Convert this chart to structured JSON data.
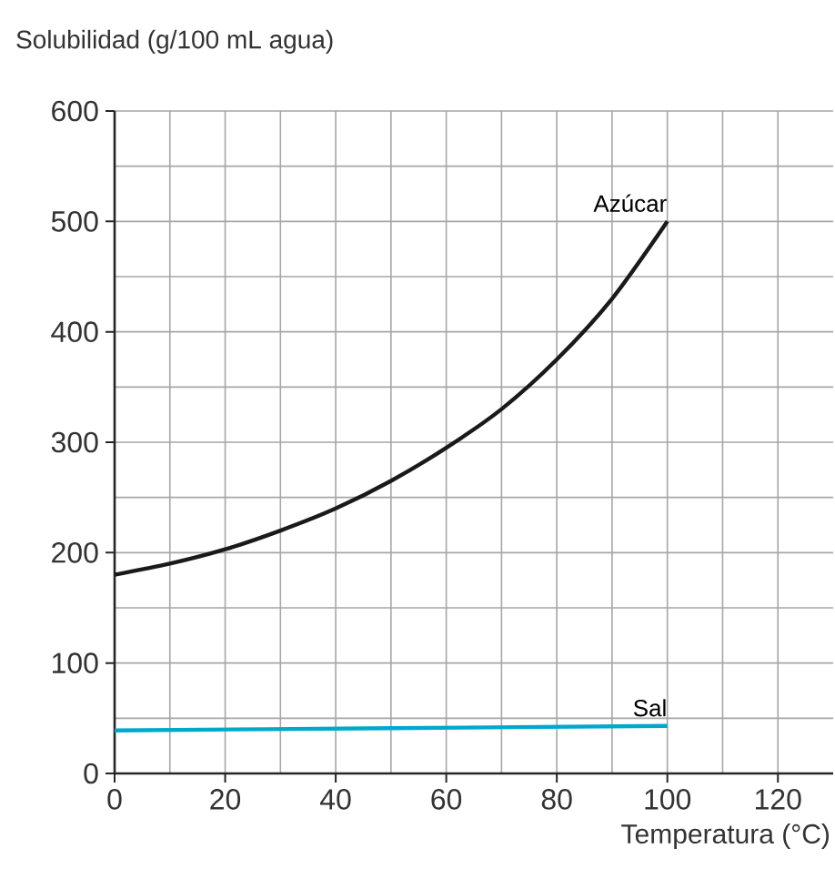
{
  "chart_data": {
    "type": "line",
    "xlabel": "Temperatura (°C)",
    "ylabel": "Solubilidad (g/100 mL agua)",
    "xlim": [
      0,
      130
    ],
    "ylim": [
      0,
      600
    ],
    "xticks": [
      0,
      20,
      40,
      60,
      80,
      100,
      120
    ],
    "yticks": [
      0,
      100,
      200,
      300,
      400,
      500,
      600
    ],
    "grid": true,
    "legend": false,
    "marker": "none",
    "line_style": "solid",
    "series": [
      {
        "name": "Azúcar",
        "color": "#1a1a1a",
        "x": [
          0,
          10,
          20,
          30,
          40,
          50,
          60,
          70,
          80,
          90,
          100
        ],
        "values": [
          180,
          190,
          203,
          220,
          240,
          265,
          295,
          330,
          375,
          430,
          500
        ]
      },
      {
        "name": "Sal",
        "color": "#00a9cc",
        "x": [
          0,
          50,
          100
        ],
        "values": [
          39,
          41,
          43
        ]
      }
    ]
  }
}
